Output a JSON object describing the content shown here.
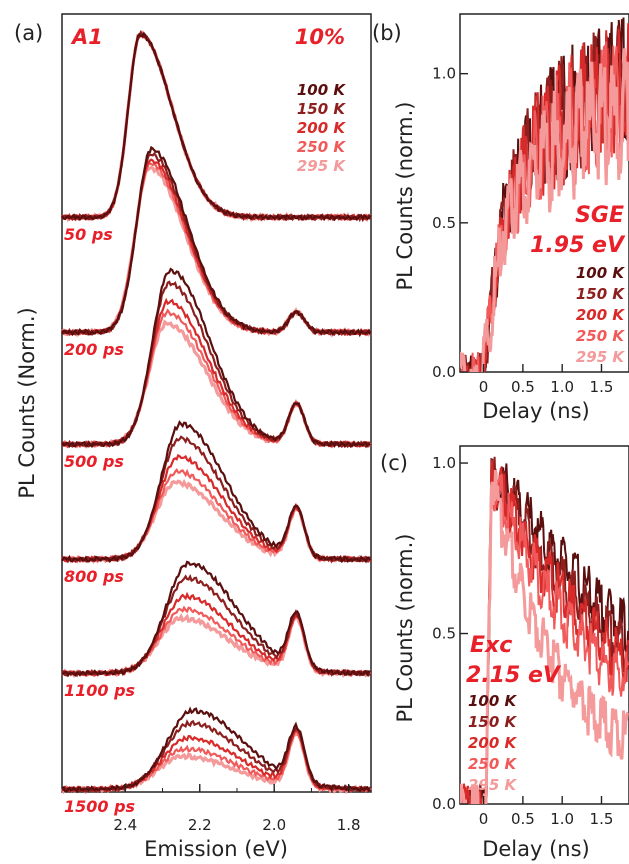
{
  "figure": {
    "panel_a": "(a)",
    "panel_b": "(b)",
    "panel_c": "(c)"
  },
  "colors": {
    "100 K": "#5a0e0e",
    "150 K": "#8e1f1f",
    "200 K": "#d92a2a",
    "250 K": "#f05a5a",
    "295 K": "#f49a9a",
    "accent": "#e8202a"
  },
  "chart_data": [
    {
      "type": "line",
      "panel": "(a)",
      "sample": "A1",
      "excitation": "10%",
      "xlabel": "Emission (eV)",
      "ylabel": "PL Counts (Norm.)",
      "xlim": [
        2.57,
        1.74
      ],
      "x_ticks": [
        "2.4",
        "2.2",
        "2.0",
        "1.8"
      ],
      "x_reversed": true,
      "legend": [
        "100 K",
        "150 K",
        "200 K",
        "250 K",
        "295 K"
      ],
      "delays": [
        "50 ps",
        "200 ps",
        "500 ps",
        "800 ps",
        "1100 ps",
        "1500 ps"
      ],
      "spectra": [
        {
          "delay": "50 ps",
          "peak_eV": 2.36,
          "main_peak_by_T": [
            1.0,
            1.0,
            1.0,
            1.0,
            1.0
          ],
          "side_peak_1_94eV": 0.0
        },
        {
          "delay": "200 ps",
          "peak_eV": 2.33,
          "main_peak_by_T": [
            1.0,
            0.97,
            0.94,
            0.92,
            0.9
          ],
          "side_peak_1_94eV": 0.11
        },
        {
          "delay": "500 ps",
          "peak_eV": 2.28,
          "main_peak_by_T": [
            0.95,
            0.88,
            0.78,
            0.72,
            0.66
          ],
          "side_peak_1_94eV": 0.22
        },
        {
          "delay": "800 ps",
          "peak_eV": 2.25,
          "main_peak_by_T": [
            0.74,
            0.66,
            0.56,
            0.48,
            0.42
          ],
          "side_peak_1_94eV": 0.27
        },
        {
          "delay": "1100 ps",
          "peak_eV": 2.23,
          "main_peak_by_T": [
            0.6,
            0.52,
            0.42,
            0.35,
            0.3
          ],
          "side_peak_1_94eV": 0.29
        },
        {
          "delay": "1500 ps",
          "peak_eV": 2.22,
          "main_peak_by_T": [
            0.43,
            0.36,
            0.28,
            0.22,
            0.18
          ],
          "side_peak_1_94eV": 0.29
        }
      ]
    },
    {
      "type": "line",
      "panel": "(b)",
      "label": "SGE",
      "energy": "1.95 eV",
      "xlabel": "Delay (ns)",
      "ylabel": "PL Counts (norm.)",
      "xlim": [
        -0.3,
        1.85
      ],
      "ylim": [
        0.0,
        1.2
      ],
      "x_ticks": [
        "0",
        "0.5",
        "1.0",
        "1.5"
      ],
      "y_ticks": [
        "0.0",
        "0.5",
        "1.0"
      ],
      "legend": [
        "100 K",
        "150 K",
        "200 K",
        "250 K",
        "295 K"
      ],
      "series": [
        {
          "name": "100 K",
          "x": [
            0,
            0.25,
            0.5,
            0.75,
            1.0,
            1.25,
            1.5,
            1.8
          ],
          "y": [
            0.08,
            0.58,
            0.8,
            0.9,
            0.97,
            1.02,
            1.06,
            1.1
          ]
        },
        {
          "name": "150 K",
          "x": [
            0,
            0.25,
            0.5,
            0.75,
            1.0,
            1.25,
            1.5,
            1.8
          ],
          "y": [
            0.08,
            0.57,
            0.79,
            0.89,
            0.96,
            1.01,
            1.05,
            1.09
          ]
        },
        {
          "name": "200 K",
          "x": [
            0,
            0.25,
            0.5,
            0.75,
            1.0,
            1.25,
            1.5,
            1.8
          ],
          "y": [
            0.08,
            0.56,
            0.77,
            0.87,
            0.94,
            0.99,
            1.03,
            1.07
          ]
        },
        {
          "name": "250 K",
          "x": [
            0,
            0.25,
            0.5,
            0.75,
            1.0,
            1.25,
            1.5,
            1.8
          ],
          "y": [
            0.08,
            0.55,
            0.74,
            0.84,
            0.91,
            0.96,
            1.0,
            1.03
          ]
        },
        {
          "name": "295 K",
          "x": [
            0,
            0.25,
            0.5,
            0.75,
            1.0,
            1.25,
            1.5,
            1.8
          ],
          "y": [
            0.08,
            0.54,
            0.71,
            0.81,
            0.87,
            0.92,
            0.95,
            0.98
          ]
        }
      ]
    },
    {
      "type": "line",
      "panel": "(c)",
      "label": "Exc",
      "energy": "2.15 eV",
      "xlabel": "Delay (ns)",
      "ylabel": "PL Counts (norm.)",
      "xlim": [
        -0.3,
        1.85
      ],
      "ylim": [
        0.0,
        1.05
      ],
      "x_ticks": [
        "0",
        "0.5",
        "1.0",
        "1.5"
      ],
      "y_ticks": [
        "0.0",
        "0.5",
        "1.0"
      ],
      "legend": [
        "100 K",
        "150 K",
        "200 K",
        "250 K",
        "295 K"
      ],
      "series": [
        {
          "name": "100 K",
          "x": [
            0.1,
            0.25,
            0.5,
            0.75,
            1.0,
            1.25,
            1.5,
            1.8
          ],
          "y": [
            1.0,
            0.97,
            0.9,
            0.82,
            0.75,
            0.68,
            0.62,
            0.56
          ]
        },
        {
          "name": "150 K",
          "x": [
            0.1,
            0.25,
            0.5,
            0.75,
            1.0,
            1.25,
            1.5,
            1.8
          ],
          "y": [
            1.0,
            0.95,
            0.86,
            0.77,
            0.69,
            0.62,
            0.56,
            0.5
          ]
        },
        {
          "name": "200 K",
          "x": [
            0.1,
            0.25,
            0.5,
            0.75,
            1.0,
            1.25,
            1.5,
            1.8
          ],
          "y": [
            1.0,
            0.94,
            0.83,
            0.73,
            0.65,
            0.58,
            0.52,
            0.46
          ]
        },
        {
          "name": "250 K",
          "x": [
            0.1,
            0.25,
            0.5,
            0.75,
            1.0,
            1.25,
            1.5,
            1.8
          ],
          "y": [
            1.0,
            0.92,
            0.79,
            0.68,
            0.59,
            0.52,
            0.46,
            0.41
          ]
        },
        {
          "name": "295 K",
          "x": [
            0.1,
            0.25,
            0.5,
            0.75,
            1.0,
            1.25,
            1.5,
            1.8
          ],
          "y": [
            1.0,
            0.85,
            0.66,
            0.52,
            0.42,
            0.34,
            0.28,
            0.24
          ]
        }
      ]
    }
  ]
}
